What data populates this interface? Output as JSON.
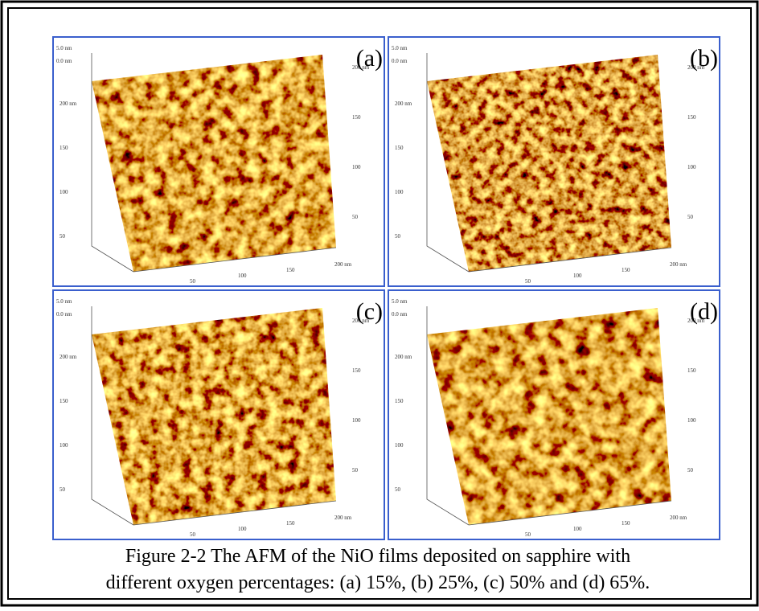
{
  "figure": {
    "panels": [
      {
        "label": "(a)",
        "z_top": "5.0 nm",
        "z_zero": "0.0 nm",
        "left_ticks": [
          "200 nm",
          "150",
          "100",
          "50"
        ],
        "bottom_ticks": [
          "50",
          "100",
          "150",
          "200 nm"
        ],
        "right_ticks": [
          "200 nm",
          "150",
          "100",
          "50"
        ]
      },
      {
        "label": "(b)",
        "z_top": "5.0 nm",
        "z_zero": "0.0 nm",
        "left_ticks": [
          "200 nm",
          "150",
          "100",
          "50"
        ],
        "bottom_ticks": [
          "50",
          "100",
          "150",
          "200 nm"
        ],
        "right_ticks": [
          "200 nm",
          "150",
          "100",
          "50"
        ]
      },
      {
        "label": "(c)",
        "z_top": "5.0 nm",
        "z_zero": "0.0 nm",
        "left_ticks": [
          "200 nm",
          "150",
          "100",
          "50"
        ],
        "bottom_ticks": [
          "50",
          "100",
          "150",
          "200 nm"
        ],
        "right_ticks": [
          "200 nm",
          "150",
          "100",
          "50"
        ]
      },
      {
        "label": "(d)",
        "z_top": "5.0 nm",
        "z_zero": "0.0 nm",
        "left_ticks": [
          "200 nm",
          "150",
          "100",
          "50"
        ],
        "bottom_ticks": [
          "50",
          "100",
          "150",
          "200 nm"
        ],
        "right_ticks": [
          "200 nm",
          "150",
          "100",
          "50"
        ]
      }
    ],
    "caption": [
      "Figure 2-2 The AFM of the NiO films deposited on sapphire with",
      "different oxygen percentages: (a) 15%, (b) 25%, (c) 50% and (d) 65%."
    ]
  }
}
